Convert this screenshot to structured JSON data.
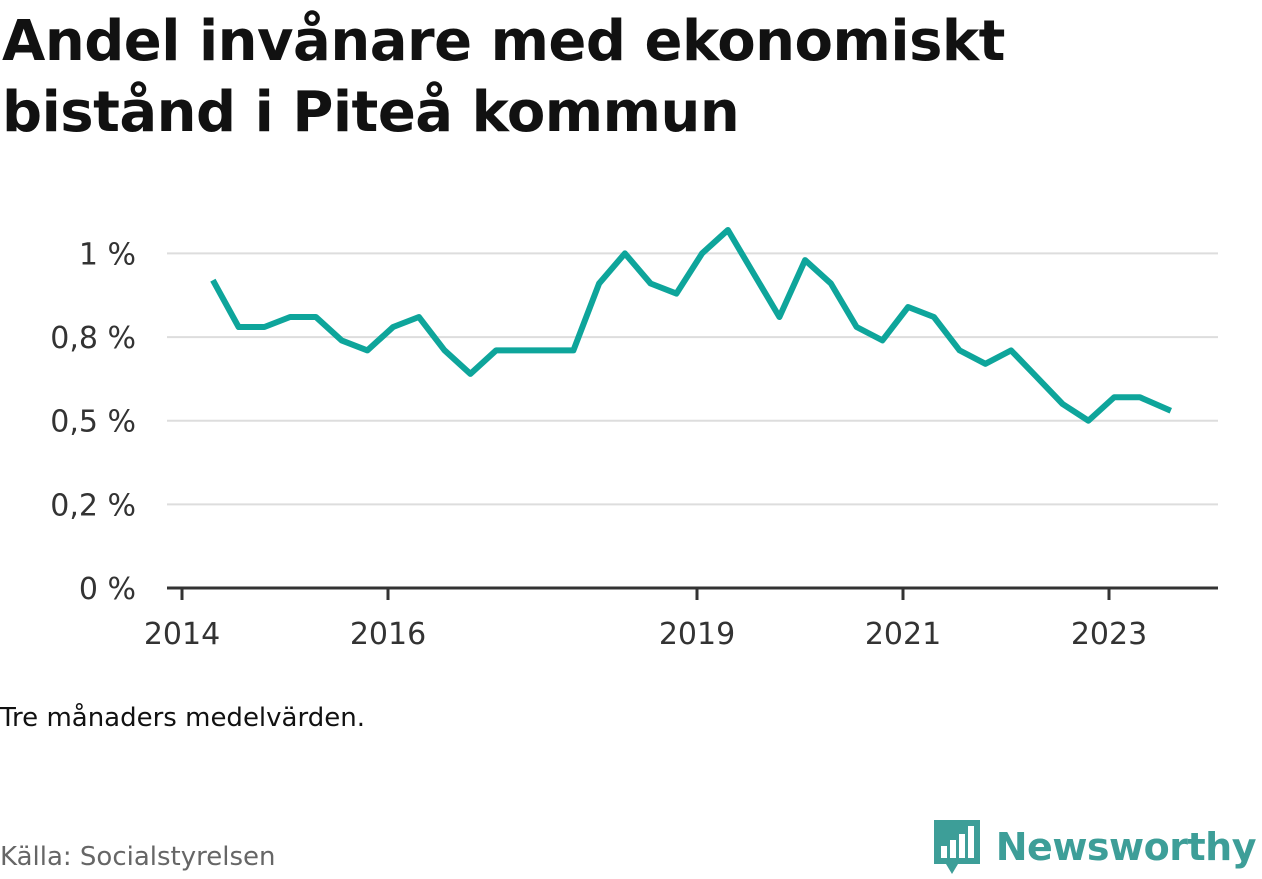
{
  "title": "Andel invånare med ekonomiskt bistånd i Piteå kommun",
  "note": "Tre månaders medelvärden.",
  "source": "Källa: Socialstyrelsen",
  "brand": {
    "name": "Newsworthy",
    "icon": "bar-chart-speech-bubble-icon"
  },
  "colors": {
    "line": "#0ea59b",
    "grid": "#dddddd",
    "axis": "#333333",
    "brand": "#3d9e98"
  },
  "chart_data": {
    "type": "line",
    "x_unit": "year",
    "y_unit": "percent",
    "y_ticks": [
      {
        "value": 0,
        "label": "0 %"
      },
      {
        "value": 0.25,
        "label": "0,2 %"
      },
      {
        "value": 0.5,
        "label": "0,5 %"
      },
      {
        "value": 0.75,
        "label": "0,8 %"
      },
      {
        "value": 1.0,
        "label": "1 %"
      }
    ],
    "x_ticks": [
      {
        "value": 2014.0,
        "label": "2014"
      },
      {
        "value": 2016.0,
        "label": "2016"
      },
      {
        "value": 2019.0,
        "label": "2019"
      },
      {
        "value": 2021.0,
        "label": "2021"
      },
      {
        "value": 2023.0,
        "label": "2023"
      }
    ],
    "xlim": [
      2013.85,
      2024.1
    ],
    "ylim": [
      0,
      1.07
    ],
    "grid": true,
    "legend": "none",
    "series": [
      {
        "x": [
          2014.3,
          2014.55,
          2014.8,
          2015.05,
          2015.3,
          2015.55,
          2015.8,
          2016.05,
          2016.3,
          2016.55,
          2016.8,
          2017.05,
          2017.3,
          2017.55,
          2017.8,
          2018.05,
          2018.3,
          2018.55,
          2018.8,
          2019.05,
          2019.3,
          2019.55,
          2019.8,
          2020.05,
          2020.3,
          2020.55,
          2020.8,
          2021.05,
          2021.3,
          2021.55,
          2021.8,
          2022.05,
          2022.3,
          2022.55,
          2022.8,
          2023.05,
          2023.3,
          2023.6
        ],
        "y": [
          0.92,
          0.78,
          0.78,
          0.81,
          0.81,
          0.74,
          0.71,
          0.78,
          0.81,
          0.71,
          0.64,
          0.71,
          0.71,
          0.71,
          0.71,
          0.91,
          1.0,
          0.91,
          0.88,
          1.0,
          1.07,
          0.94,
          0.81,
          0.98,
          0.91,
          0.78,
          0.74,
          0.84,
          0.81,
          0.71,
          0.67,
          0.71,
          0.63,
          0.55,
          0.5,
          0.57,
          0.57,
          0.53
        ]
      }
    ]
  }
}
